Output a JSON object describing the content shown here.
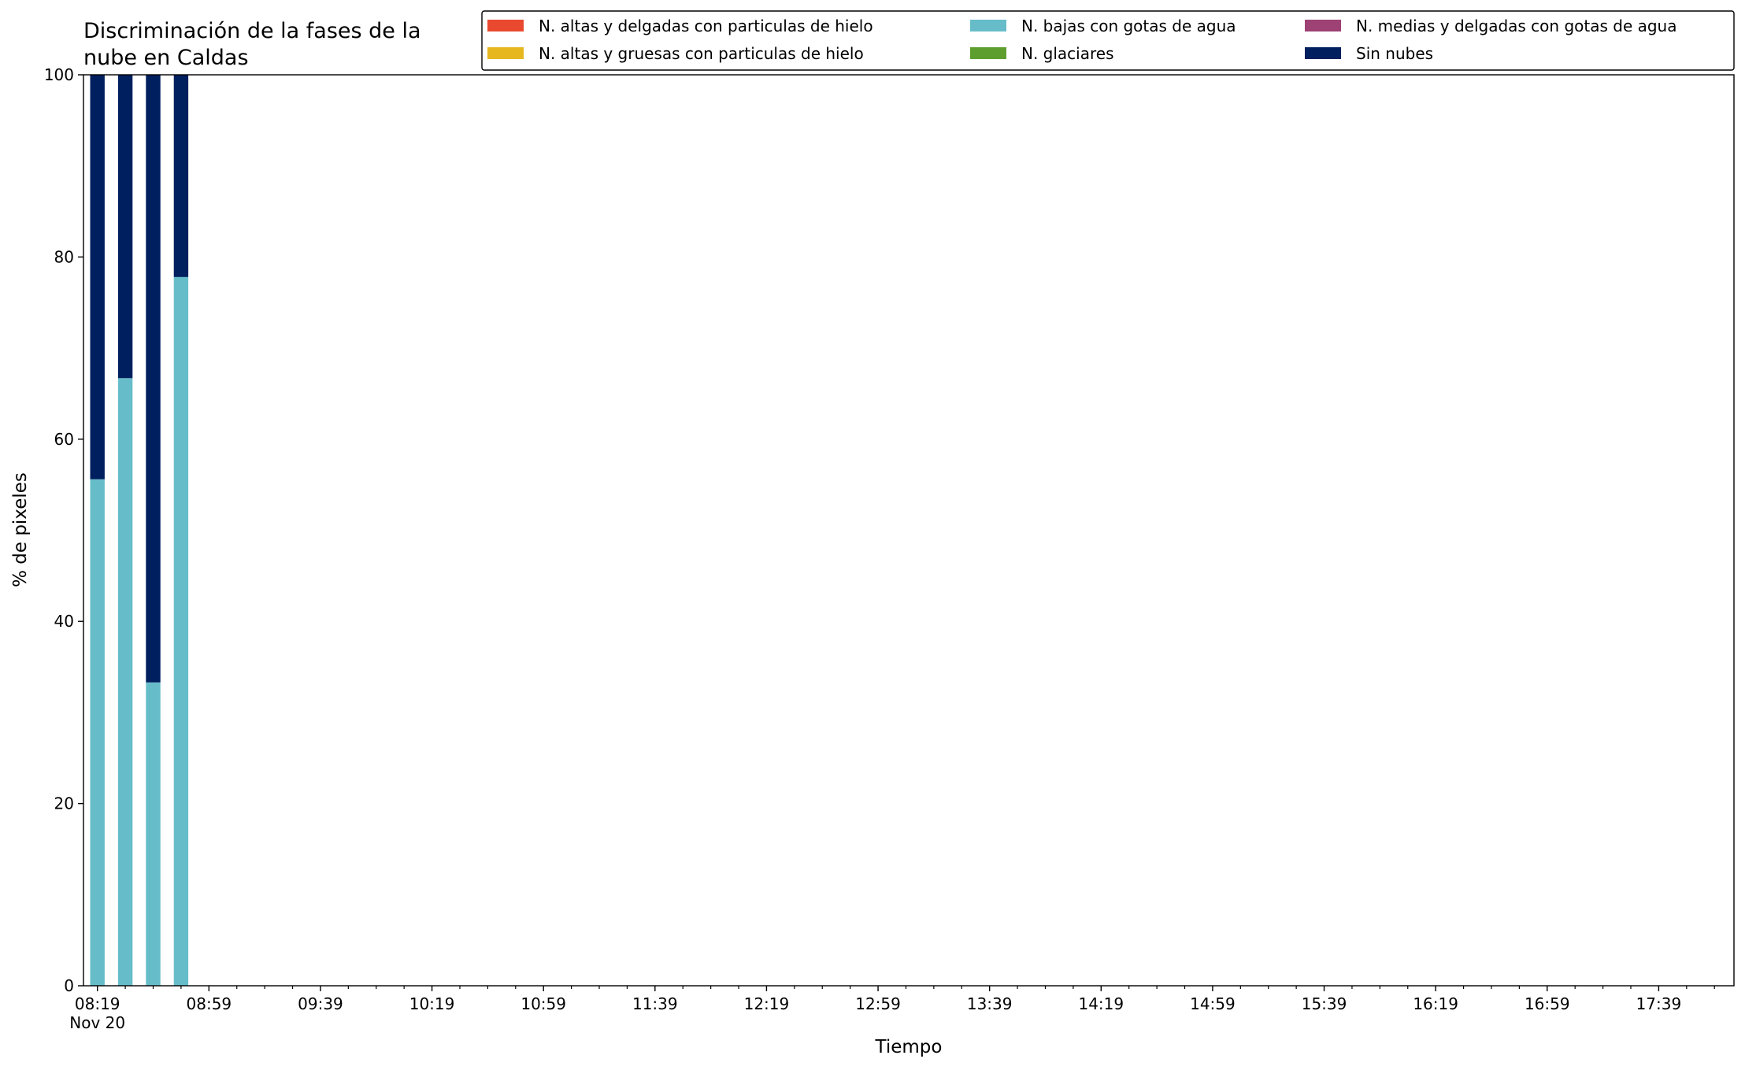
{
  "chart_data": {
    "type": "stacked_bar",
    "title": [
      "Discriminación de la fases de la",
      "nube en Caldas"
    ],
    "xlabel": "Tiempo",
    "ylabel": "% de pixeles",
    "x": [
      "08:19",
      "08:29",
      "08:39",
      "08:49"
    ],
    "x_date_label": "Nov 20",
    "series": [
      {
        "name": "N. altas y delgadas con particulas de hielo",
        "color": "#e8492f",
        "values": [
          0,
          0,
          0,
          0
        ]
      },
      {
        "name": "N. altas y gruesas con particulas de hielo",
        "color": "#e6b71e",
        "values": [
          0,
          0,
          0,
          0
        ]
      },
      {
        "name": "N. bajas con gotas de agua",
        "color": "#66bdc9",
        "values": [
          55.6,
          66.7,
          33.3,
          77.8
        ]
      },
      {
        "name": "N. glaciares",
        "color": "#5e9e2e",
        "values": [
          0,
          0,
          0,
          0
        ]
      },
      {
        "name": "N. medias y delgadas con gotas de agua",
        "color": "#9e4174",
        "values": [
          0,
          0,
          0,
          0
        ]
      },
      {
        "name": "Sin nubes",
        "color": "#001f5f",
        "values": [
          44.4,
          33.3,
          66.7,
          22.2
        ]
      }
    ],
    "xlim": [
      "08:14",
      "18:06"
    ],
    "xticks": [
      "08:19",
      "08:59",
      "09:39",
      "10:19",
      "10:59",
      "11:39",
      "12:19",
      "12:59",
      "13:39",
      "14:19",
      "14:59",
      "15:39",
      "16:19",
      "16:59",
      "17:39"
    ],
    "xminorticks": [
      "08:29",
      "08:39",
      "08:49",
      "09:09",
      "09:19",
      "09:29",
      "09:49",
      "09:59",
      "10:09",
      "10:29",
      "10:39",
      "10:49",
      "11:09",
      "11:19",
      "11:29",
      "11:49",
      "11:59",
      "12:09",
      "12:29",
      "12:39",
      "12:49",
      "13:09",
      "13:19",
      "13:29",
      "13:49",
      "13:59",
      "14:09",
      "14:29",
      "14:39",
      "14:49",
      "15:09",
      "15:19",
      "15:29",
      "15:49",
      "15:59",
      "16:09",
      "16:29",
      "16:39",
      "16:49",
      "17:09",
      "17:19",
      "17:29",
      "17:49",
      "17:59"
    ],
    "ylim": [
      0,
      100
    ],
    "yticks": [
      0,
      20,
      40,
      60,
      80,
      100
    ],
    "grid": false,
    "legend": "upper right",
    "legend_columns": 3
  }
}
